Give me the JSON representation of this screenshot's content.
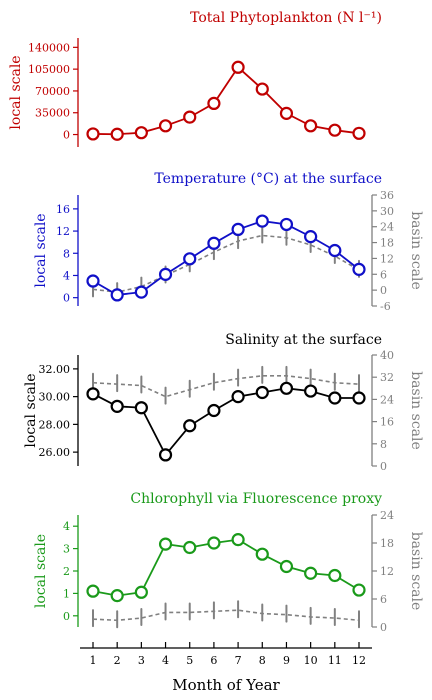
{
  "colors": {
    "red": "#c00000",
    "blue": "#1010c8",
    "black": "#000000",
    "green": "#1a9a1a",
    "grey": "#808080"
  },
  "x_axis": {
    "label": "Month of Year",
    "ticks": [
      "1",
      "2",
      "3",
      "4",
      "5",
      "6",
      "7",
      "8",
      "9",
      "10",
      "11",
      "12"
    ]
  },
  "chart_data": [
    {
      "type": "line",
      "title": "Total Phytoplankton (N l⁻¹)",
      "ylabel": "local scale",
      "color": "#c00000",
      "ylim": [
        -20000,
        155000
      ],
      "yticks": [
        "0",
        "35000",
        "70000",
        "105000",
        "140000"
      ],
      "x": [
        1,
        2,
        3,
        4,
        5,
        6,
        7,
        8,
        9,
        10,
        11,
        12
      ],
      "series": [
        {
          "values": [
            1000,
            500,
            3000,
            14000,
            28000,
            50000,
            108000,
            73000,
            34000,
            14000,
            7000,
            2000
          ]
        }
      ]
    },
    {
      "type": "line",
      "title": "Temperature (°C) at the surface",
      "ylabel": "local scale",
      "ylabel_right": "basin scale",
      "color": "#1010c8",
      "ylim": [
        -1.5,
        18.5
      ],
      "yticks": [
        "0",
        "4",
        "8",
        "12",
        "16"
      ],
      "yticks_right": [
        "-6",
        "0",
        "6",
        "12",
        "18",
        "24",
        "30",
        "36"
      ],
      "ylim_right": [
        -6,
        36
      ],
      "x": [
        1,
        2,
        3,
        4,
        5,
        6,
        7,
        8,
        9,
        10,
        11,
        12
      ],
      "series": [
        {
          "values": [
            3.0,
            0.5,
            1.0,
            4.2,
            7.0,
            9.8,
            12.3,
            13.8,
            13.2,
            11.0,
            8.5,
            5.1
          ]
        },
        {
          "values": [
            1.5,
            1.0,
            2.0,
            4.0,
            6.0,
            8.2,
            10.2,
            11.2,
            10.8,
            9.5,
            7.5,
            5.0
          ]
        }
      ]
    },
    {
      "type": "line",
      "title": "Salinity at the surface",
      "ylabel": "local scale",
      "ylabel_right": "basin scale",
      "color": "#000000",
      "ylim": [
        25.0,
        33.0
      ],
      "yticks": [
        "26.00",
        "28.00",
        "30.00",
        "32.00"
      ],
      "yticks_right": [
        "0",
        "8",
        "16",
        "24",
        "32",
        "40"
      ],
      "ylim_right": [
        0,
        40
      ],
      "x": [
        1,
        2,
        3,
        4,
        5,
        6,
        7,
        8,
        9,
        10,
        11,
        12
      ],
      "series": [
        {
          "values": [
            30.2,
            29.3,
            29.2,
            25.8,
            27.9,
            29.0,
            30.0,
            30.3,
            30.6,
            30.4,
            29.9,
            29.9
          ]
        },
        {
          "values": [
            31.0,
            30.9,
            30.8,
            30.0,
            30.5,
            31.0,
            31.3,
            31.5,
            31.5,
            31.3,
            31.0,
            30.9
          ]
        }
      ]
    },
    {
      "type": "line",
      "title": "Chlorophyll via Fluorescence proxy",
      "ylabel": "local scale",
      "ylabel_right": "basin scale",
      "color": "#1a9a1a",
      "ylim": [
        -0.5,
        4.5
      ],
      "yticks": [
        "0",
        "1",
        "2",
        "3",
        "4"
      ],
      "yticks_right": [
        "0",
        "6",
        "12",
        "18",
        "24"
      ],
      "ylim_right": [
        0,
        24
      ],
      "x": [
        1,
        2,
        3,
        4,
        5,
        6,
        7,
        8,
        9,
        10,
        11,
        12
      ],
      "series": [
        {
          "values": [
            1.1,
            0.9,
            1.05,
            3.2,
            3.05,
            3.25,
            3.4,
            2.75,
            2.2,
            1.9,
            1.8,
            1.15
          ]
        },
        {
          "values": [
            -0.15,
            -0.2,
            -0.1,
            0.15,
            0.15,
            0.2,
            0.25,
            0.1,
            0.05,
            -0.05,
            -0.1,
            -0.2
          ]
        }
      ]
    }
  ]
}
